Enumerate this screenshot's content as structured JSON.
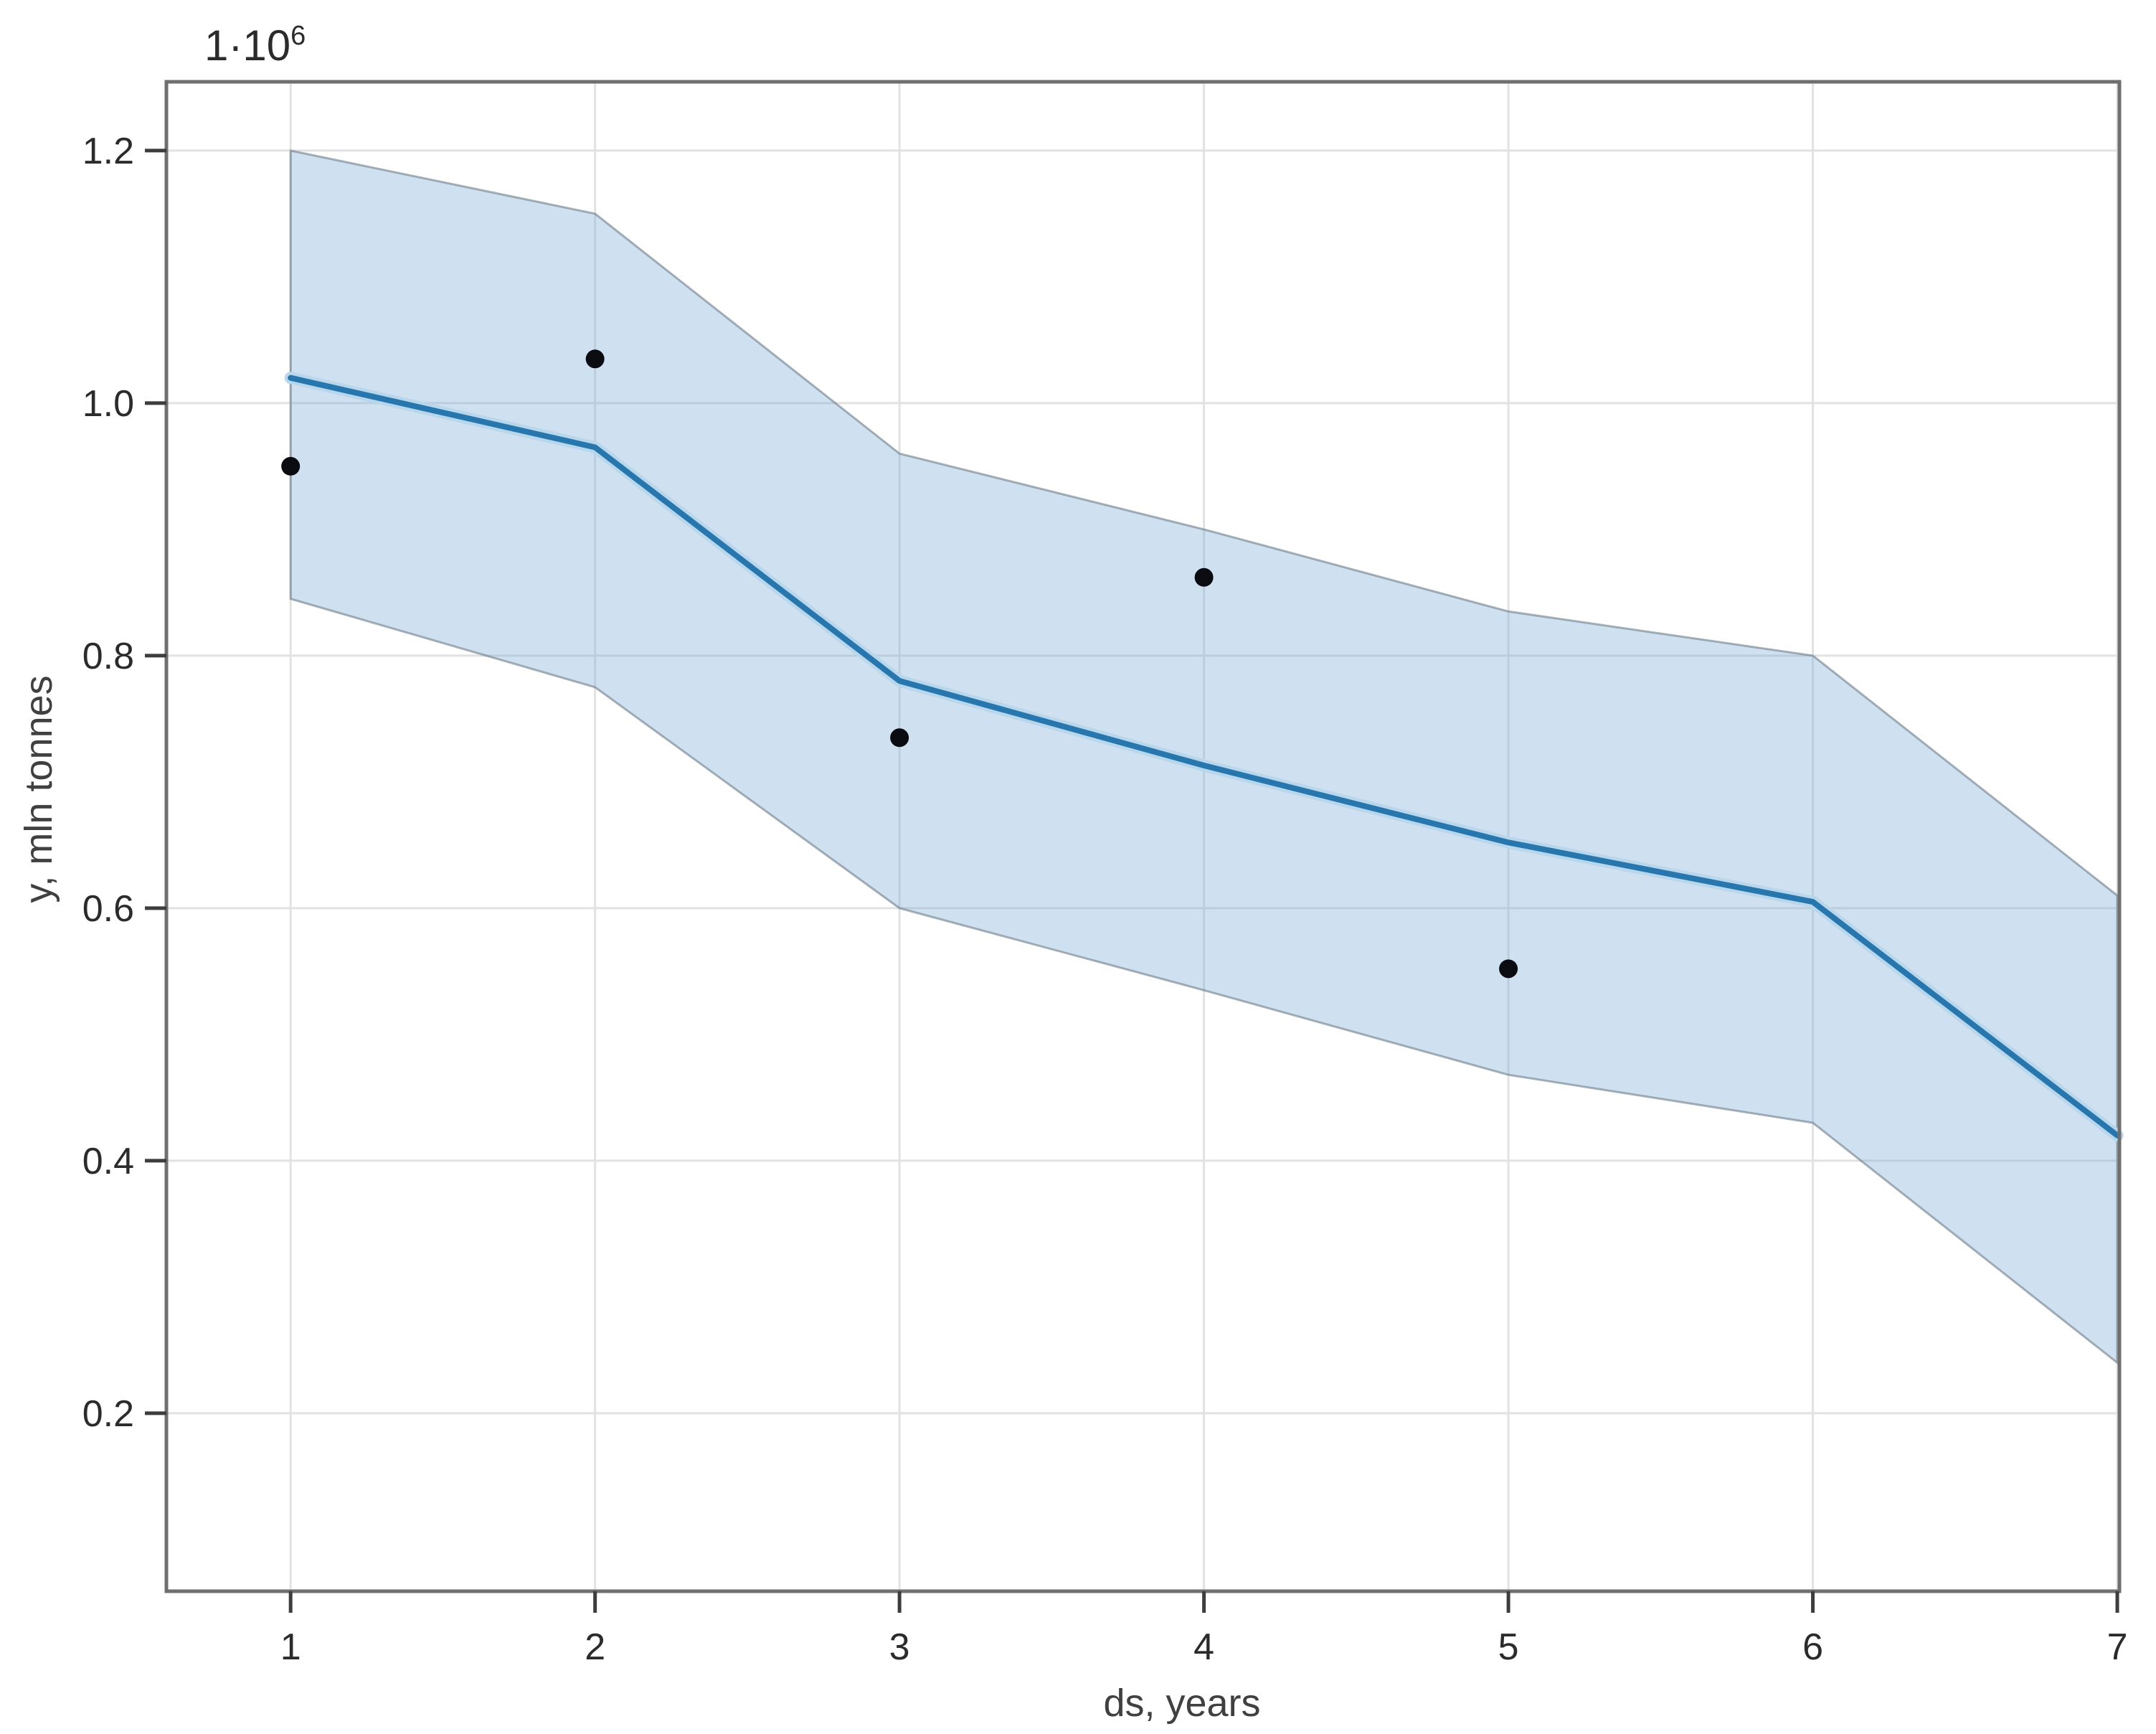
{
  "figure": {
    "offset_label": {
      "base": "1·10",
      "exp": "6"
    }
  },
  "chart_data": {
    "type": "line",
    "title": "",
    "xlabel": "ds, years",
    "ylabel": "y, mln tonnes",
    "y_scale_offset": "1e6",
    "x": [
      1,
      2,
      3,
      4,
      5,
      6,
      7
    ],
    "series": [
      {
        "name": "fit line",
        "role": "line",
        "values": [
          1.02,
          0.965,
          0.78,
          0.713,
          0.652,
          0.605,
          0.42
        ]
      },
      {
        "name": "confidence band upper",
        "role": "band-upper",
        "values": [
          1.2,
          1.15,
          0.96,
          0.9,
          0.835,
          0.8,
          0.61
        ]
      },
      {
        "name": "confidence band lower",
        "role": "band-lower",
        "values": [
          0.845,
          0.775,
          0.6,
          0.535,
          0.468,
          0.43,
          0.24
        ]
      }
    ],
    "scatter": {
      "name": "observed points",
      "x": [
        1,
        2,
        3,
        4,
        5
      ],
      "y": [
        0.95,
        1.035,
        0.735,
        0.862,
        0.552
      ]
    },
    "x_ticks": [
      {
        "v": 1,
        "label": "1"
      },
      {
        "v": 2,
        "label": "2"
      },
      {
        "v": 3,
        "label": "3"
      },
      {
        "v": 4,
        "label": "4"
      },
      {
        "v": 5,
        "label": "5"
      },
      {
        "v": 6,
        "label": "6"
      },
      {
        "v": 7,
        "label": "7"
      }
    ],
    "y_ticks": [
      {
        "v": 0.2,
        "label": "0.2"
      },
      {
        "v": 0.4,
        "label": "0.4"
      },
      {
        "v": 0.6,
        "label": "0.6"
      },
      {
        "v": 0.8,
        "label": "0.8"
      },
      {
        "v": 1.0,
        "label": "1.0"
      },
      {
        "v": 1.2,
        "label": "1.2"
      }
    ],
    "xlim": [
      0.592,
      7.007
    ],
    "ylim": [
      0.059,
      1.2545
    ],
    "grid": true,
    "legend_position": "none",
    "colors": {
      "line": "#2777ae",
      "line_halo": "#b9d7ec",
      "band_fill": "rgba(117,170,212,0.35)",
      "band_edge": "rgba(100,115,128,0.55)",
      "scatter": "#0b0b12",
      "grid": "#e2e2e2",
      "frame": "#6f6f6f",
      "tick": "#3d3d3d",
      "tick_text": "#2b2b2b",
      "axis_label": "#404040"
    }
  }
}
